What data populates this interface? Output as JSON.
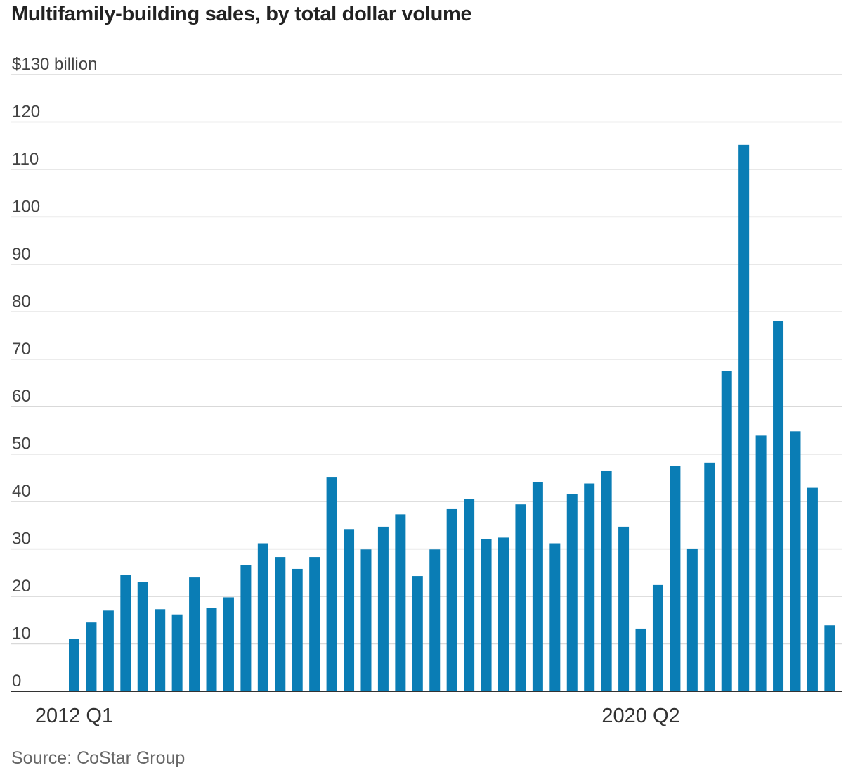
{
  "chart_data": {
    "type": "bar",
    "title": "Multifamily-building sales, by total dollar volume",
    "ylabel": "",
    "xlabel": "",
    "y_unit_label": "$130 billion",
    "ylim": [
      0,
      130
    ],
    "yticks": [
      0,
      10,
      20,
      30,
      40,
      50,
      60,
      70,
      80,
      90,
      100,
      110,
      120,
      130
    ],
    "ytick_labels": [
      "0",
      "10",
      "20",
      "30",
      "40",
      "50",
      "60",
      "70",
      "80",
      "90",
      "100",
      "110",
      "120",
      "$130 billion"
    ],
    "x_tick_labels": [
      {
        "index": 0,
        "label": "2012 Q1"
      },
      {
        "index": 33,
        "label": "2020 Q2"
      }
    ],
    "grid": true,
    "bar_color": "#0a7db5",
    "values": [
      11,
      14.5,
      17,
      24.5,
      23,
      17.3,
      16.2,
      24,
      17.6,
      19.8,
      26.6,
      31.2,
      28.3,
      25.8,
      28.3,
      45.2,
      34.2,
      29.9,
      34.7,
      37.3,
      24.3,
      29.9,
      38.4,
      40.6,
      32.1,
      32.4,
      39.4,
      44.1,
      31.2,
      41.6,
      43.8,
      46.4,
      34.7,
      13.2,
      22.4,
      47.5,
      30.1,
      48.2,
      67.5,
      115.2,
      53.9,
      78,
      54.8,
      42.9,
      13.9
    ]
  },
  "footer": {
    "source": "Source: CoStar Group"
  }
}
